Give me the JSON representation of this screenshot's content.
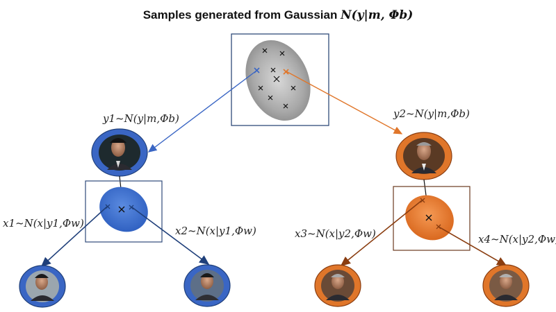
{
  "title": {
    "prefix": "Samples generated from Gaussian",
    "formula": "N(y|m, Φb)"
  },
  "labels": {
    "y1": "y1~N(y|m,Φb)",
    "y2": "y2~N(y|m,Φb)",
    "x1": "x1~N(x|y1,Φw)",
    "x2": "x2~N(x|y1,Φw)",
    "x3": "x3~N(x|y2,Φw)",
    "x4": "x4~N(x|y2,Φw)"
  },
  "colors": {
    "between_class": "#9a9a9a",
    "speaker1": "#3a66c4",
    "speaker1_arrows": "#1f3f7a",
    "speaker2": "#e0762a",
    "speaker2_arrows": "#8a3d10",
    "box_blue": "#2f4a7a",
    "box_brown": "#6b3a1e"
  },
  "icons": {
    "top_ellipse": "gaussian-ellipse-gray",
    "face_y1": "face-portrait-icon",
    "face_y2": "face-portrait-icon",
    "face_x1": "face-portrait-icon",
    "face_x2": "face-portrait-icon",
    "face_x3": "face-portrait-icon",
    "face_x4": "face-portrait-icon"
  }
}
